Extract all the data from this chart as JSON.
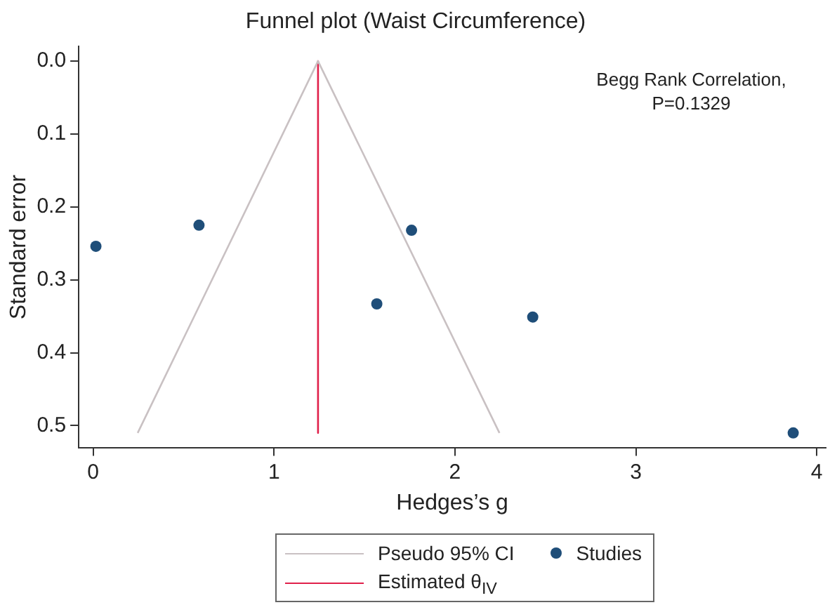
{
  "chart_data": {
    "type": "scatter",
    "title": "Funnel plot (Waist Circumference)",
    "xlabel": "Hedges’s g",
    "ylabel": "Standard error",
    "annotations": [
      "Begg Rank Correlation,\nP=0.1329"
    ],
    "series": [
      {
        "name": "Pseudo 95% CI",
        "type": "line",
        "color": "#c9c1c3",
        "x": [
          0.246,
          1.243,
          2.246
        ],
        "values": [
          0.51,
          0,
          0.51
        ],
        "marker": "none"
      },
      {
        "name": "Estimated θ$_{IV}$",
        "type": "line",
        "color": "#e0204a",
        "x": [
          1.243,
          1.243
        ],
        "values": [
          0,
          0.51
        ],
        "marker": "none"
      },
      {
        "name": "Studies",
        "type": "scatter",
        "color": "#1f4e79",
        "x": [
          0.015,
          0.585,
          1.76,
          1.568,
          2.43,
          3.87
        ],
        "values": [
          0.254,
          0.225,
          0.232,
          0.333,
          0.351,
          0.51
        ],
        "marker": "circle"
      }
    ],
    "xlim": [
      -0.08,
      4.05
    ],
    "ylim": [
      0.53,
      -0.02
    ],
    "xticks": [
      0,
      1,
      2,
      3,
      4
    ],
    "yticks": [
      {
        "value": 0,
        "label": "0.0"
      },
      {
        "value": 0.1,
        "label": "0.1"
      },
      {
        "value": 0.2,
        "label": "0.2"
      },
      {
        "value": 0.3,
        "label": "0.3"
      },
      {
        "value": 0.4,
        "label": "0.4"
      },
      {
        "value": 0.5,
        "label": "0.5"
      }
    ],
    "grid": false,
    "legend": "bottom"
  }
}
